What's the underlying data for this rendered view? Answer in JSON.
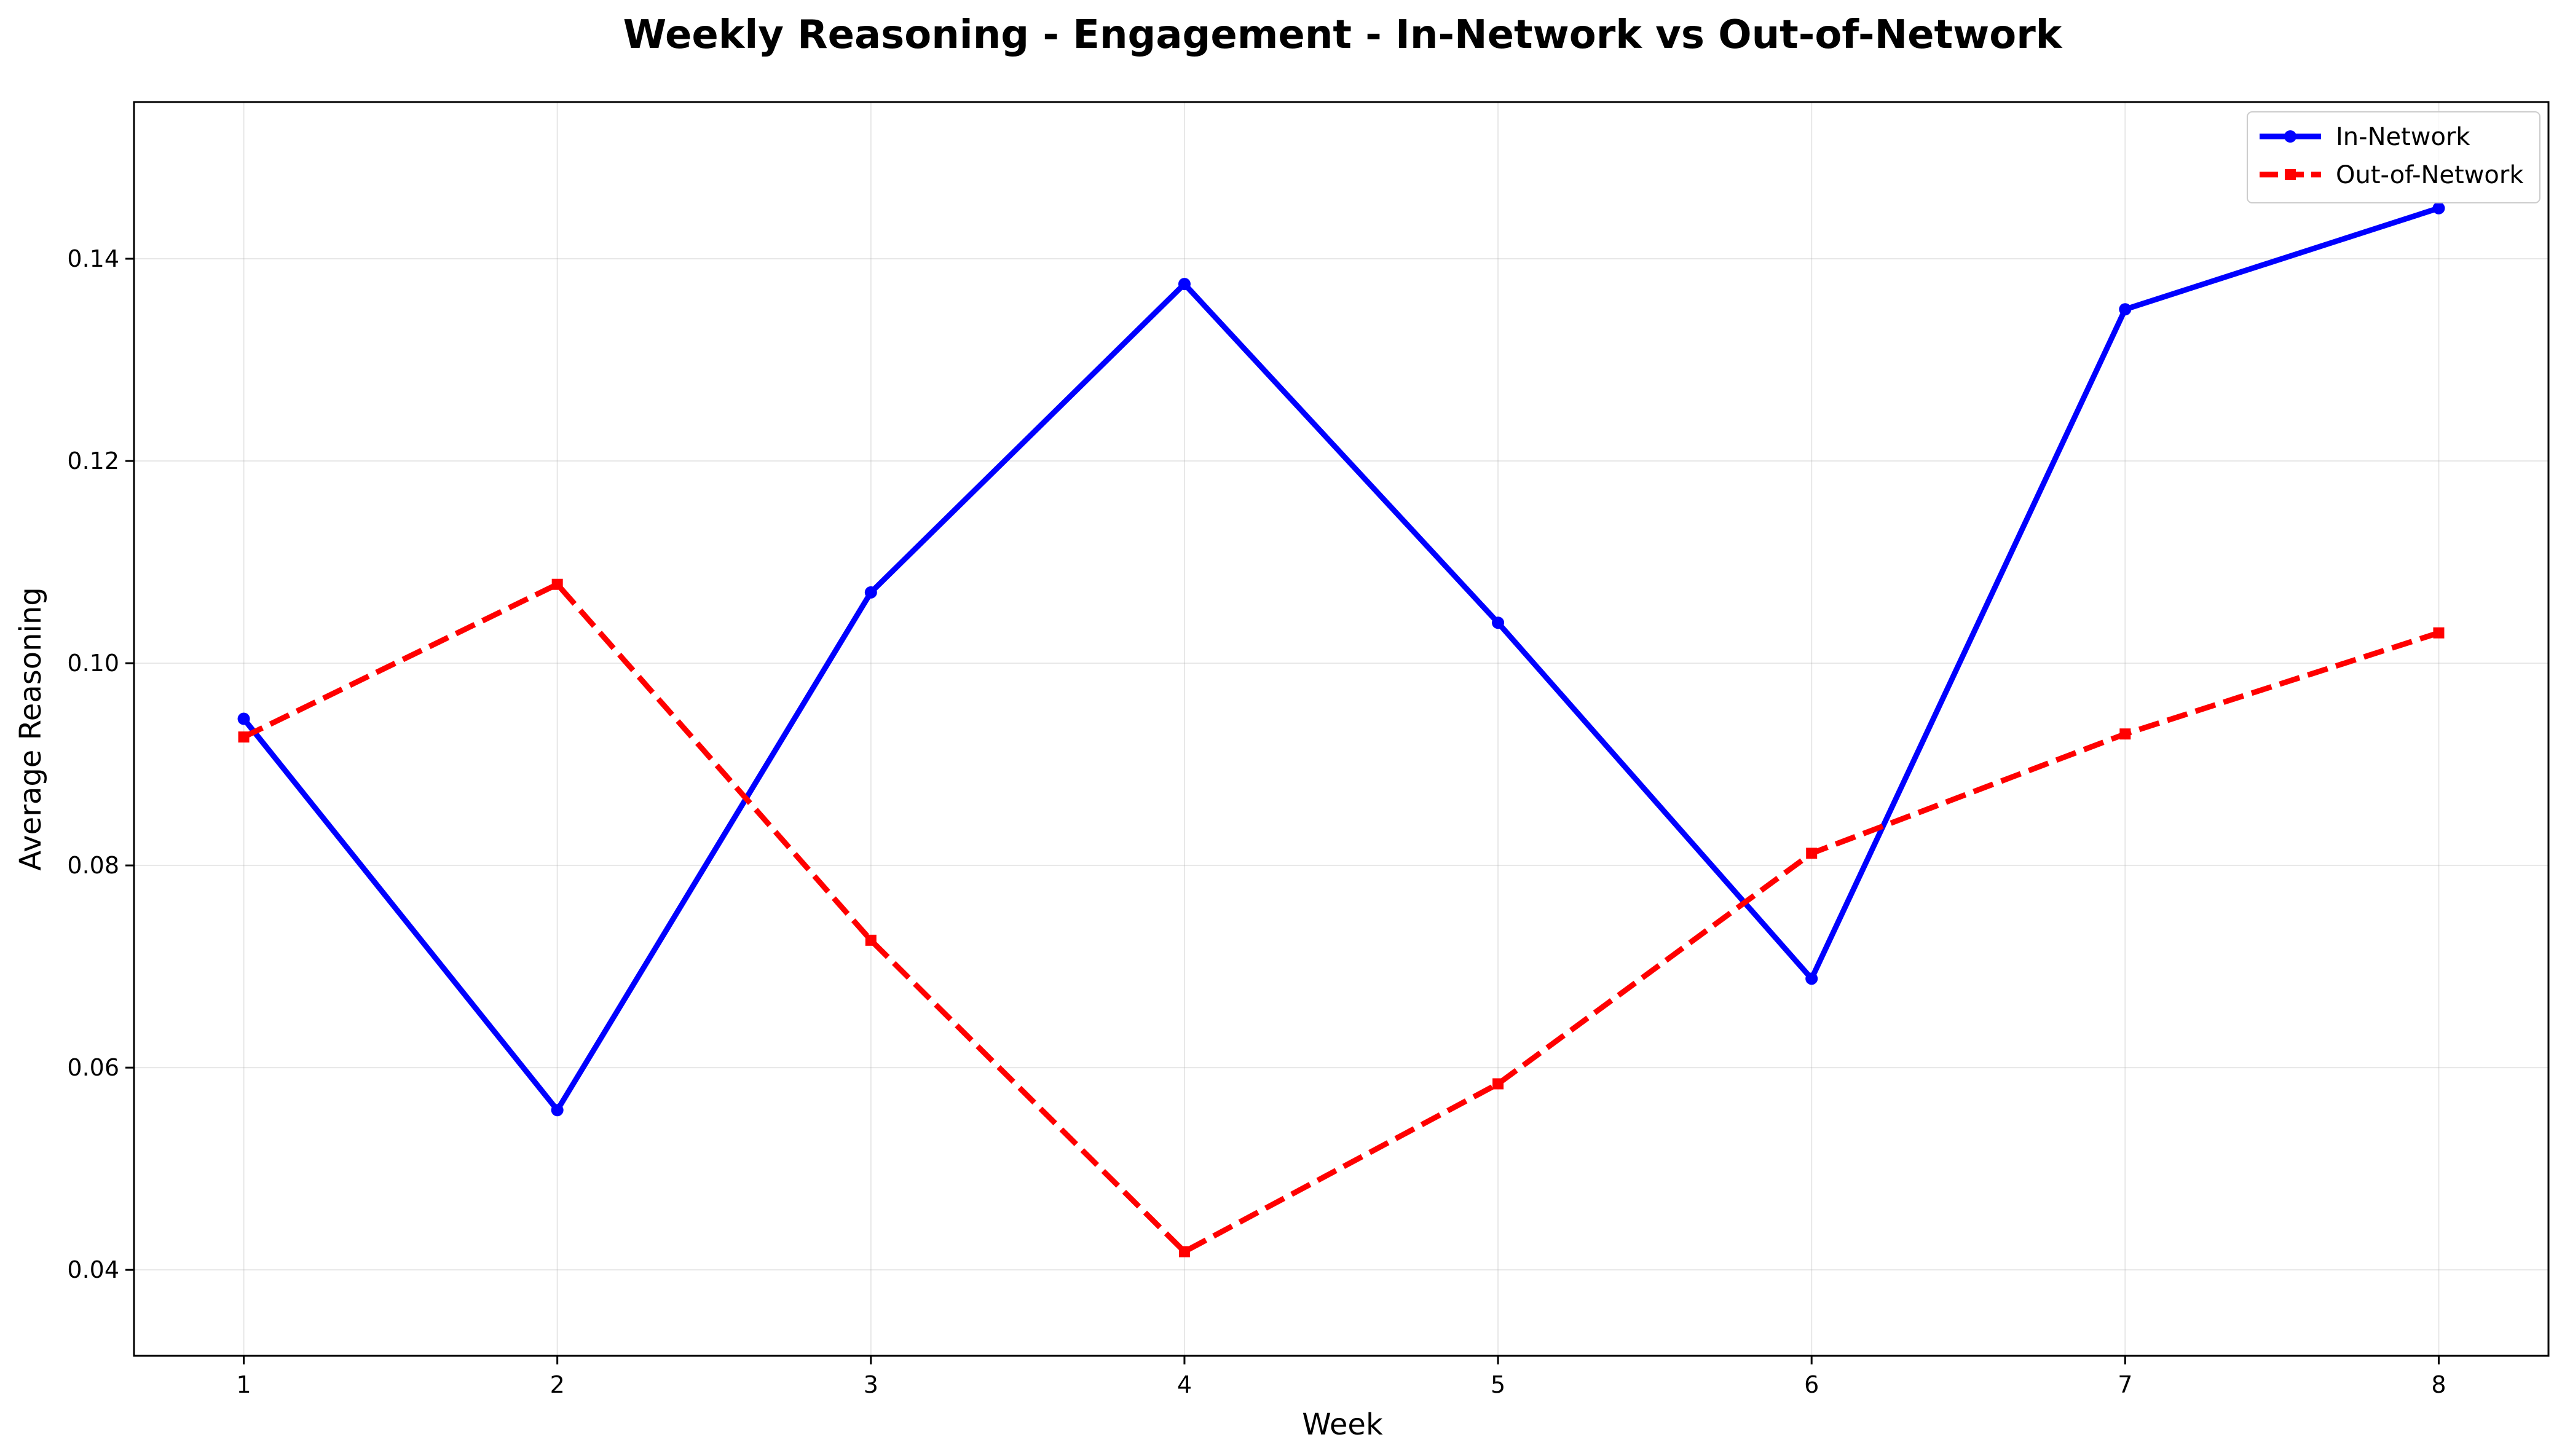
{
  "chart_data": {
    "type": "line",
    "title": "Weekly Reasoning - Engagement - In-Network vs Out-of-Network",
    "xlabel": "Week",
    "ylabel": "Average Reasoning",
    "x": [
      1,
      2,
      3,
      4,
      5,
      6,
      7,
      8
    ],
    "xticks": [
      "1",
      "2",
      "3",
      "4",
      "5",
      "6",
      "7",
      "8"
    ],
    "yticks": [
      "0.04",
      "0.06",
      "0.08",
      "0.10",
      "0.12",
      "0.14"
    ],
    "xlim": [
      0.65,
      8.35
    ],
    "ylim": [
      0.0315,
      0.1555
    ],
    "grid": true,
    "legend_position": "upper right",
    "series": [
      {
        "name": "In-Network",
        "values": [
          0.0945,
          0.0558,
          0.107,
          0.1375,
          0.104,
          0.0688,
          0.135,
          0.145
        ],
        "color": "#0000ff",
        "line_style": "solid",
        "marker": "circle"
      },
      {
        "name": "Out-of-Network",
        "values": [
          0.0927,
          0.1078,
          0.0726,
          0.0418,
          0.0584,
          0.0812,
          0.093,
          0.103
        ],
        "color": "#ff0000",
        "line_style": "dashed",
        "marker": "square"
      }
    ]
  }
}
